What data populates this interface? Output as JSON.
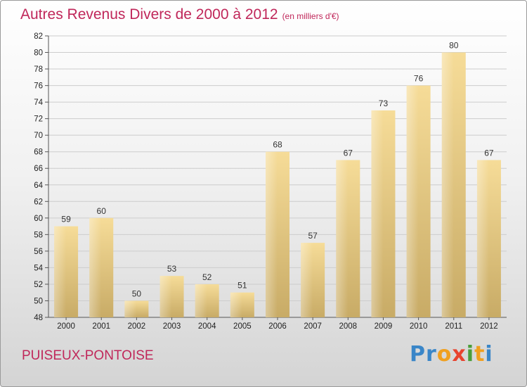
{
  "title": "Autres Revenus Divers de 2000 à 2012",
  "subtitle": "(en milliers d'€)",
  "location": "PUISEUX-PONTOISE",
  "brand": {
    "letters": [
      "P",
      "r",
      "o",
      "x",
      "i",
      "t",
      "i"
    ],
    "colors": [
      "#3a86c8",
      "#3a86c8",
      "#f0a020",
      "#e8432e",
      "#4a9e3a",
      "#f0a020",
      "#3a86c8"
    ]
  },
  "colors": {
    "title": "#c0275a",
    "bar_light": "#f6dc98",
    "bar_dark": "#c8ab66",
    "grid": "#cccccc"
  },
  "chart_data": {
    "type": "bar",
    "title": "Autres Revenus Divers de 2000 à 2012",
    "subtitle": "(en milliers d'€)",
    "categories": [
      "2000",
      "2001",
      "2002",
      "2003",
      "2004",
      "2005",
      "2006",
      "2007",
      "2008",
      "2009",
      "2010",
      "2011",
      "2012"
    ],
    "values": [
      59,
      60,
      50,
      53,
      52,
      51,
      68,
      57,
      67,
      73,
      76,
      80,
      67
    ],
    "ylim": [
      48,
      82
    ],
    "yticks": [
      48,
      50,
      52,
      54,
      56,
      58,
      60,
      62,
      64,
      66,
      68,
      70,
      72,
      74,
      76,
      78,
      80,
      82
    ],
    "grid": true,
    "data_labels": true
  }
}
